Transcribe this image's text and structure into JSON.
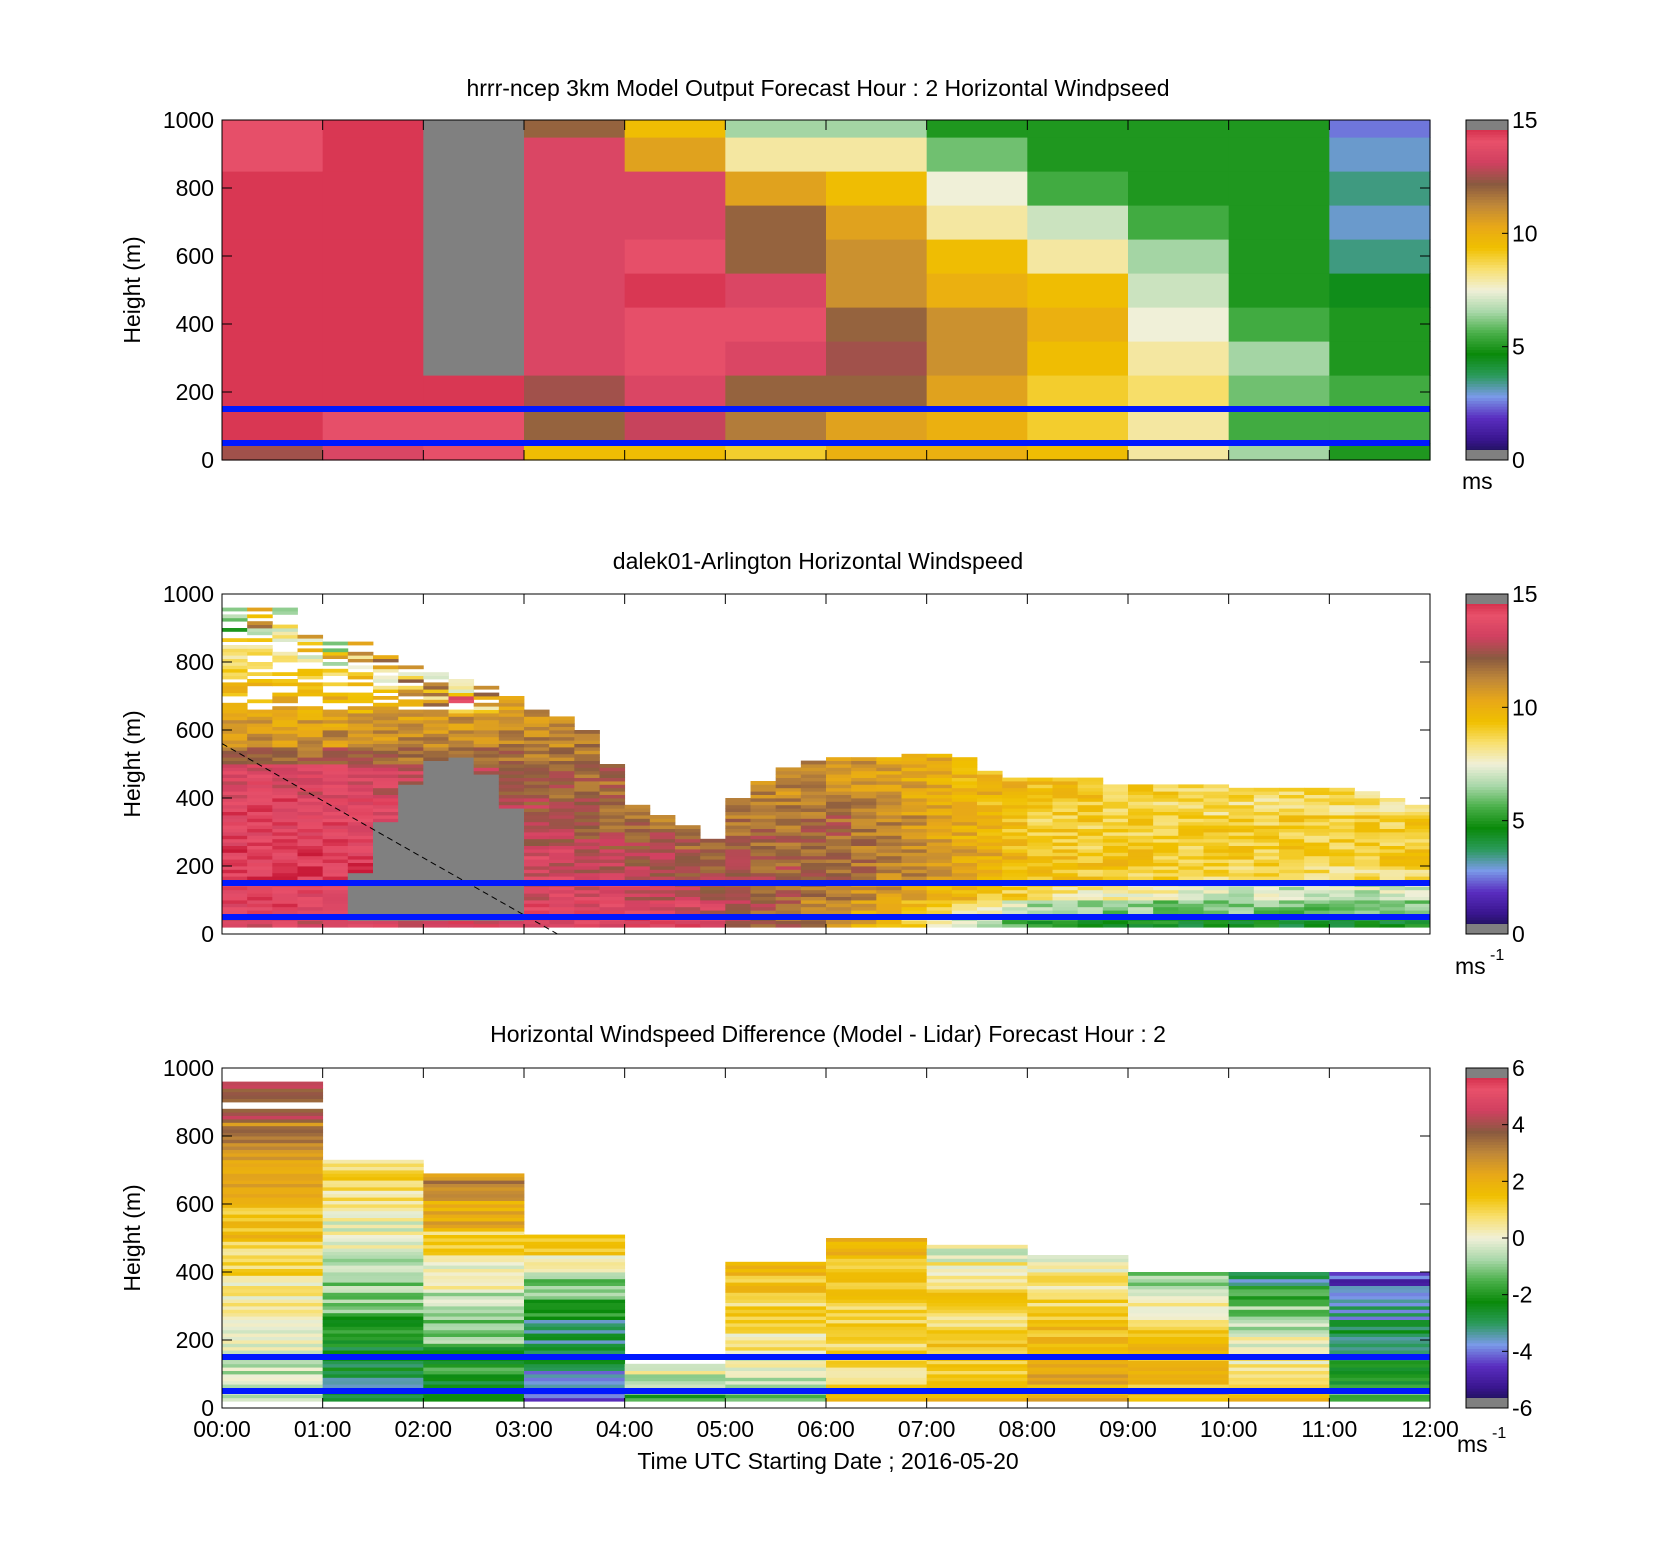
{
  "colors": {
    "overlay_line": "#0018ff",
    "missing": "#808080",
    "colormap": [
      "#808080",
      "#10103a",
      "#3a1690",
      "#5a2ec0",
      "#7a9ae8",
      "#2a9a5a",
      "#0a8a0a",
      "#4ab04a",
      "#aad8aa",
      "#f0f0d8",
      "#f8e070",
      "#f0c000",
      "#e8a818",
      "#c08838",
      "#8a5a40",
      "#d04060",
      "#e8506a",
      "#c81a38",
      "#808080"
    ]
  },
  "x_axis": {
    "ticks": [
      "00:00",
      "01:00",
      "02:00",
      "03:00",
      "04:00",
      "05:00",
      "06:00",
      "07:00",
      "08:00",
      "09:00",
      "10:00",
      "11:00",
      "12:00"
    ],
    "label": "Time UTC  Starting Date ; 2016-05-20"
  },
  "panels": [
    {
      "title": "hrrr-ncep 3km Model Output   Forecast Hour : 2 Horizontal Windpseed",
      "ylabel": "Height (m)",
      "yticks": [
        "0",
        "200",
        "400",
        "600",
        "800",
        "1000"
      ],
      "colorbar": {
        "ticks": [
          "0",
          "5",
          "10",
          "15"
        ],
        "range": [
          0,
          15
        ],
        "unit": "ms"
      }
    },
    {
      "title": "dalek01-Arlington  Horizontal Windspeed",
      "ylabel": "Height (m)",
      "yticks": [
        "0",
        "200",
        "400",
        "600",
        "800",
        "1000"
      ],
      "colorbar": {
        "ticks": [
          "0",
          "5",
          "10",
          "15"
        ],
        "range": [
          0,
          15
        ],
        "unit": "ms",
        "unit_exp": "-1"
      }
    },
    {
      "title": "Horizontal Windspeed Difference (Model - Lidar) Forecast Hour : 2",
      "ylabel": "Height (m)",
      "yticks": [
        "0",
        "200",
        "400",
        "600",
        "800",
        "1000"
      ],
      "colorbar": {
        "ticks": [
          "-6",
          "-4",
          "-2",
          "0",
          "2",
          "4",
          "6"
        ],
        "range": [
          -6,
          6
        ],
        "unit": "ms",
        "unit_exp": "-1"
      }
    }
  ],
  "chart_data": [
    {
      "type": "heatmap",
      "title": "hrrr-ncep 3km Model Output   Forecast Hour : 2 Horizontal Windpseed",
      "ylabel": "Height (m)",
      "xlim": [
        "00:00",
        "12:00"
      ],
      "ylim": [
        0,
        1000
      ],
      "value_range": [
        0,
        15
      ],
      "unit": "ms",
      "x": [
        "00:00",
        "01:00",
        "02:00",
        "03:00",
        "04:00",
        "05:00",
        "06:00",
        "07:00",
        "08:00",
        "09:00",
        "10:00",
        "11:00"
      ],
      "y_bins": [
        [
          0,
          50
        ],
        [
          50,
          150
        ],
        [
          150,
          250
        ],
        [
          250,
          350
        ],
        [
          350,
          450
        ],
        [
          450,
          550
        ],
        [
          550,
          650
        ],
        [
          650,
          750
        ],
        [
          750,
          850
        ],
        [
          850,
          950
        ],
        [
          950,
          1000
        ]
      ],
      "values": [
        [
          12.5,
          14.5,
          14.5,
          14.5,
          14.5,
          14.5,
          14.5,
          14.5,
          14.5,
          14.0,
          14.0
        ],
        [
          13.5,
          14.0,
          14.5,
          14.5,
          14.5,
          14.5,
          14.5,
          14.5,
          14.5,
          14.5,
          14.5
        ],
        [
          14.0,
          14.0,
          14.5,
          null,
          null,
          null,
          null,
          null,
          null,
          null,
          null
        ],
        [
          9.5,
          12.0,
          12.5,
          13.5,
          13.5,
          13.5,
          13.5,
          13.5,
          13.5,
          13.5,
          12.0
        ],
        [
          9.5,
          13.0,
          13.5,
          14.0,
          14.0,
          14.5,
          14.0,
          13.5,
          13.5,
          10.5,
          9.5
        ],
        [
          9.0,
          11.5,
          12.0,
          13.5,
          14.0,
          13.5,
          12.0,
          12.0,
          10.5,
          8.0,
          6.5
        ],
        [
          10.0,
          10.5,
          12.0,
          12.5,
          12.0,
          11.0,
          11.0,
          10.5,
          9.5,
          8.0,
          6.5
        ],
        [
          10.0,
          10.0,
          10.5,
          11.0,
          11.0,
          10.0,
          9.5,
          8.0,
          7.5,
          6.0,
          5.0
        ],
        [
          9.5,
          9.0,
          9.0,
          9.5,
          10.0,
          9.5,
          8.0,
          7.0,
          5.5,
          5.0,
          5.0
        ],
        [
          8.0,
          8.0,
          8.5,
          8.0,
          7.5,
          7.0,
          6.5,
          5.5,
          5.0,
          5.0,
          5.0
        ],
        [
          6.5,
          5.5,
          6.0,
          6.5,
          5.5,
          5.0,
          5.0,
          5.0,
          5.0,
          5.0,
          5.0
        ],
        [
          5.0,
          5.5,
          5.5,
          5.0,
          5.0,
          4.5,
          3.5,
          3.0,
          3.5,
          3.0,
          2.5
        ]
      ],
      "overlay_lines_y": [
        50,
        150
      ]
    },
    {
      "type": "heatmap",
      "title": "dalek01-Arlington  Horizontal Windspeed",
      "ylabel": "Height (m)",
      "xlim": [
        "00:00",
        "12:00"
      ],
      "ylim": [
        0,
        1000
      ],
      "value_range": [
        0,
        15
      ],
      "unit": "ms-1",
      "x": [
        "00:00",
        "00:15",
        "00:30",
        "00:45",
        "01:00",
        "01:15",
        "01:30",
        "01:45",
        "02:00",
        "02:15",
        "02:30",
        "02:45",
        "03:00",
        "03:15",
        "03:30",
        "03:45",
        "04:00",
        "04:15",
        "04:30",
        "04:45",
        "05:00",
        "05:15",
        "05:30",
        "05:45",
        "06:00",
        "06:15",
        "06:30",
        "06:45",
        "07:00",
        "07:15",
        "07:30",
        "07:45",
        "08:00",
        "08:15",
        "08:30",
        "08:45",
        "09:00",
        "09:15",
        "09:30",
        "09:45",
        "10:00",
        "10:15",
        "10:30",
        "10:45",
        "11:00",
        "11:15",
        "11:30",
        "11:45"
      ],
      "y": [
        0,
        50,
        100,
        150,
        200,
        250,
        300,
        350,
        400,
        450,
        500,
        550,
        600,
        650,
        700,
        750,
        800,
        850,
        900,
        950,
        1000
      ],
      "column_top_m": [
        960,
        960,
        960,
        900,
        860,
        860,
        820,
        800,
        780,
        760,
        740,
        700,
        660,
        640,
        600,
        500,
        380,
        350,
        320,
        280,
        400,
        450,
        490,
        510,
        520,
        520,
        520,
        530,
        530,
        520,
        480,
        460,
        460,
        460,
        460,
        440,
        440,
        440,
        440,
        440,
        430,
        430,
        430,
        430,
        430,
        420,
        400,
        380
      ],
      "missing_region_m": {
        "x": [
          "01:15",
          "03:00"
        ],
        "top": [
          180,
          520
        ],
        "bottom": 20
      },
      "profile_samples_at": [
        "01:00",
        "04:30",
        "06:00",
        "08:00",
        "10:00"
      ],
      "profile_values": [
        [
          13.5,
          14.0,
          14.0,
          14.5,
          14.5,
          14.0,
          14.0,
          14.0,
          13.5,
          13.5,
          12.0,
          11.0,
          10.5,
          10.0,
          9.5,
          9.0,
          8.5
        ],
        [
          14.0,
          13.5,
          13.0,
          12.5,
          12.5,
          12.0,
          11.5
        ],
        [
          11.0,
          11.0,
          11.5,
          12.0,
          12.0,
          12.0,
          12.0,
          11.5,
          11.0,
          11.0,
          11.0
        ],
        [
          5.0,
          6.5,
          8.5,
          9.5,
          9.5,
          9.0,
          9.0,
          9.0,
          9.5,
          9.0
        ],
        [
          4.5,
          6.0,
          7.0,
          8.5,
          9.0,
          9.0,
          9.0,
          8.5,
          8.5
        ]
      ],
      "diagonal_line_m": {
        "from": [
          "00:00",
          560
        ],
        "to": [
          "03:20",
          0
        ]
      },
      "overlay_lines_y": [
        50,
        150
      ]
    },
    {
      "type": "heatmap",
      "title": "Horizontal Windspeed Difference (Model - Lidar) Forecast Hour : 2",
      "ylabel": "Height (m)",
      "xlabel": "Time UTC  Starting Date ; 2016-05-20",
      "xlim": [
        "00:00",
        "12:00"
      ],
      "ylim": [
        0,
        1000
      ],
      "value_range": [
        -6,
        6
      ],
      "unit": "ms-1",
      "x": [
        "00:00",
        "01:00",
        "02:00",
        "03:00",
        "04:00",
        "05:00",
        "06:00",
        "07:00",
        "08:00",
        "09:00",
        "10:00",
        "11:00"
      ],
      "column_top_m": [
        960,
        730,
        690,
        510,
        130,
        430,
        500,
        480,
        450,
        400,
        400,
        400
      ],
      "column_mean_diff_top_to_bottom": [
        [
          4,
          3,
          2,
          1.5,
          1,
          0.5,
          0,
          -0.5
        ],
        [
          1,
          0.5,
          0,
          -0.5,
          -1,
          -2,
          -2.5,
          -3
        ],
        [
          3,
          2,
          1,
          0,
          -0.5,
          -1,
          -2,
          -2.5
        ],
        [
          1,
          0,
          -1,
          -2,
          -3,
          -3,
          -3.5,
          -4
        ],
        [
          0,
          -0.5,
          -1,
          -2
        ],
        [
          1.5,
          1.5,
          1,
          1,
          0.5,
          0,
          -0.5,
          -1
        ],
        [
          2,
          1.5,
          1.5,
          1,
          1,
          1,
          1,
          1.5
        ],
        [
          0,
          0.5,
          1,
          1,
          1,
          1.5,
          1.5,
          2
        ],
        [
          0,
          0.5,
          1,
          1.5,
          1.5,
          2,
          2,
          2
        ],
        [
          -1,
          0,
          0.5,
          1,
          1.5,
          1.5,
          1.5,
          2
        ],
        [
          -3,
          -2,
          -1,
          -0.5,
          0,
          0.5,
          1,
          1.5
        ],
        [
          -4.5,
          -3.5,
          -3.5,
          -3,
          -3,
          -2.5,
          -2,
          -1.5
        ]
      ],
      "overlay_lines_y": [
        50,
        150
      ]
    }
  ]
}
